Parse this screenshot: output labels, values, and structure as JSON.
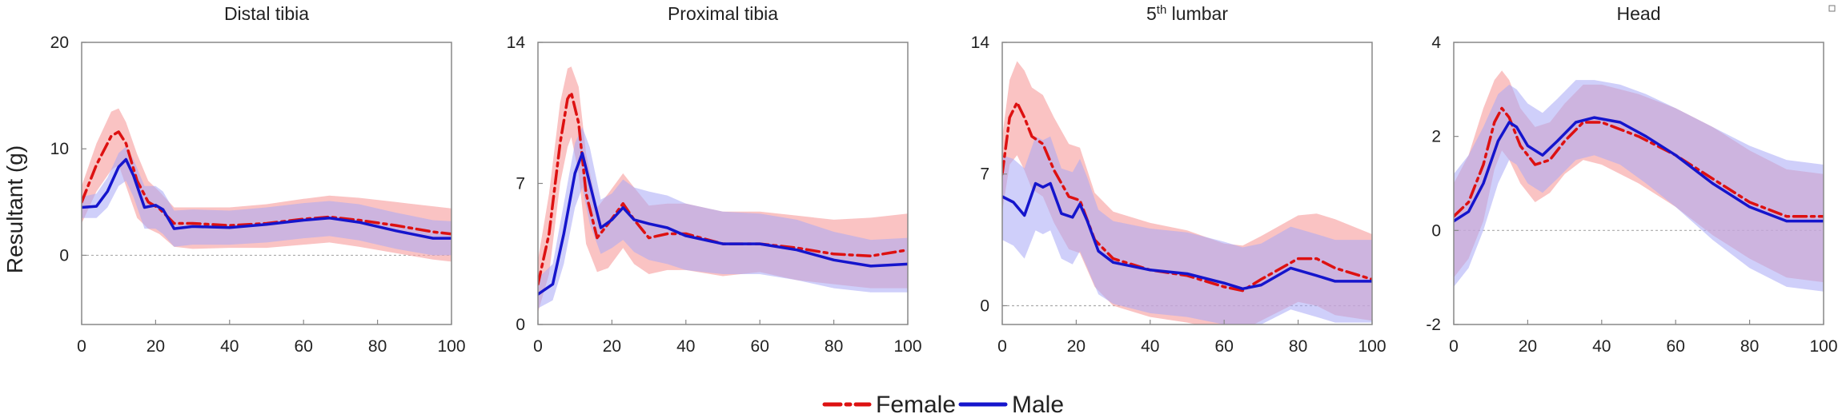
{
  "chart_data": {
    "type": "line",
    "ylabel": "Resultant (g)",
    "legend": {
      "placement": "bottom-center",
      "entries": [
        {
          "name": "Female",
          "color": "#dd1111",
          "dash": "dash-dot"
        },
        {
          "name": "Male",
          "color": "#1515cc",
          "dash": "solid"
        }
      ]
    },
    "colors": {
      "female_line": "#dd1111",
      "male_line": "#1515cc",
      "female_band": "#f7a3a3",
      "male_band": "#a8a8f5",
      "overlap_band": "#9a63b8"
    },
    "x_ticks": [
      "0",
      "20",
      "40",
      "60",
      "80",
      "100"
    ],
    "xlim": [
      0,
      100
    ],
    "panels": [
      {
        "title": "Distal tibia",
        "title_sup": "",
        "title_rest": "",
        "ylim": [
          -6.5,
          20
        ],
        "y_ticks": [
          {
            "v": 0,
            "label": "0"
          },
          {
            "v": 10,
            "label": "10"
          },
          {
            "v": 20,
            "label": "20"
          }
        ],
        "zero_line": true,
        "series": [
          {
            "name": "Female",
            "x": [
              0,
              4,
              8,
              10,
              12,
              15,
              18,
              21,
              25,
              30,
              40,
              50,
              60,
              67,
              75,
              85,
              95,
              100
            ],
            "y": [
              5.0,
              8.5,
              11.2,
              11.6,
              10.5,
              7.0,
              5.0,
              4.4,
              3.0,
              3.0,
              2.8,
              3.0,
              3.4,
              3.6,
              3.3,
              2.8,
              2.2,
              2.0
            ],
            "lower": [
              3.0,
              6.0,
              8.0,
              8.5,
              6.5,
              3.5,
              2.5,
              2.0,
              0.8,
              0.6,
              0.7,
              0.7,
              1.0,
              1.2,
              0.8,
              0.2,
              -0.4,
              -0.6
            ],
            "upper": [
              6.5,
              10.5,
              13.5,
              13.8,
              12.5,
              9.5,
              7.0,
              6.0,
              4.5,
              4.5,
              4.5,
              4.8,
              5.3,
              5.6,
              5.4,
              5.0,
              4.6,
              4.4
            ]
          },
          {
            "name": "Male",
            "x": [
              0,
              4,
              7,
              10,
              12,
              14,
              17,
              20,
              22,
              25,
              30,
              40,
              50,
              60,
              67,
              75,
              85,
              95,
              100
            ],
            "y": [
              4.5,
              4.6,
              6.0,
              8.3,
              9.0,
              7.5,
              4.5,
              4.7,
              4.3,
              2.5,
              2.7,
              2.6,
              2.9,
              3.3,
              3.5,
              3.1,
              2.3,
              1.6,
              1.6
            ],
            "lower": [
              3.5,
              3.5,
              4.5,
              6.5,
              7.0,
              5.5,
              2.5,
              2.5,
              2.0,
              0.8,
              1.0,
              1.0,
              1.2,
              1.6,
              1.8,
              1.4,
              0.6,
              0.0,
              0.0
            ],
            "upper": [
              5.5,
              5.8,
              7.3,
              9.6,
              10.2,
              9.0,
              6.5,
              6.5,
              6.0,
              4.2,
              4.3,
              4.2,
              4.5,
              4.9,
              5.1,
              4.8,
              4.0,
              3.3,
              3.2
            ]
          }
        ]
      },
      {
        "title": "Proximal tibia",
        "title_sup": "",
        "title_rest": "",
        "ylim": [
          0,
          14
        ],
        "y_ticks": [
          {
            "v": 0,
            "label": "0"
          },
          {
            "v": 7,
            "label": "7"
          },
          {
            "v": 14,
            "label": "14"
          }
        ],
        "zero_line": false,
        "series": [
          {
            "name": "Female",
            "x": [
              0,
              3,
              6,
              8,
              9,
              11,
              13,
              16,
              19,
              23,
              26,
              30,
              35,
              40,
              50,
              60,
              70,
              80,
              90,
              100
            ],
            "y": [
              2.0,
              4.5,
              9.0,
              11.2,
              11.5,
              10.0,
              6.5,
              4.3,
              5.0,
              6.0,
              5.2,
              4.3,
              4.5,
              4.5,
              4.0,
              4.0,
              3.8,
              3.5,
              3.4,
              3.7
            ],
            "lower": [
              0.6,
              2.5,
              7.0,
              8.8,
              9.3,
              7.5,
              4.0,
              2.6,
              2.8,
              3.8,
              3.0,
              2.5,
              2.7,
              2.7,
              2.4,
              2.6,
              2.2,
              2.0,
              1.8,
              1.8
            ],
            "upper": [
              3.2,
              6.5,
              11.0,
              12.7,
              12.8,
              11.8,
              8.5,
              5.8,
              6.5,
              7.5,
              6.8,
              5.9,
              6.0,
              6.0,
              5.6,
              5.6,
              5.4,
              5.2,
              5.3,
              5.5
            ]
          },
          {
            "name": "Male",
            "x": [
              0,
              4,
              7,
              10,
              12,
              14,
              17,
              20,
              23,
              26,
              30,
              35,
              40,
              50,
              60,
              70,
              80,
              90,
              100
            ],
            "y": [
              1.5,
              2.0,
              4.5,
              7.5,
              8.5,
              7.0,
              4.8,
              5.2,
              5.8,
              5.2,
              5.0,
              4.8,
              4.4,
              4.0,
              4.0,
              3.7,
              3.2,
              2.9,
              3.0
            ],
            "lower": [
              0.8,
              1.2,
              3.0,
              5.8,
              6.8,
              5.0,
              3.5,
              3.8,
              4.2,
              3.6,
              3.2,
              3.0,
              2.7,
              2.5,
              2.5,
              2.2,
              1.8,
              1.6,
              1.6
            ],
            "upper": [
              2.3,
              3.0,
              6.0,
              9.0,
              9.8,
              8.8,
              6.2,
              6.5,
              7.2,
              6.8,
              6.6,
              6.4,
              6.0,
              5.6,
              5.5,
              5.2,
              4.6,
              4.2,
              4.3
            ]
          }
        ]
      },
      {
        "title": "5",
        "title_sup": "th",
        "title_rest": " lumbar",
        "ylim": [
          -1,
          14
        ],
        "y_ticks": [
          {
            "v": 0,
            "label": "0"
          },
          {
            "v": 7,
            "label": "7"
          },
          {
            "v": 14,
            "label": "14"
          }
        ],
        "zero_line": true,
        "series": [
          {
            "name": "Female",
            "x": [
              0,
              2,
              4,
              6,
              8,
              11,
              14,
              18,
              21,
              25,
              30,
              40,
              50,
              60,
              65,
              70,
              80,
              85,
              90,
              100
            ],
            "y": [
              7.0,
              10.0,
              10.8,
              10.0,
              9.0,
              8.6,
              7.2,
              5.8,
              5.6,
              3.5,
              2.5,
              1.9,
              1.6,
              1.0,
              0.8,
              1.4,
              2.5,
              2.5,
              2.0,
              1.4
            ],
            "lower": [
              5.0,
              7.5,
              8.0,
              7.2,
              6.2,
              5.8,
              4.4,
              3.0,
              2.8,
              1.0,
              0.0,
              -0.6,
              -0.9,
              -1.3,
              -1.3,
              -0.8,
              0.2,
              0.0,
              -0.5,
              -0.8
            ],
            "upper": [
              9.0,
              12.0,
              13.0,
              12.5,
              11.6,
              11.2,
              10.0,
              8.6,
              8.4,
              6.0,
              5.0,
              4.4,
              4.0,
              3.3,
              3.2,
              3.7,
              4.8,
              4.9,
              4.6,
              3.8
            ]
          },
          {
            "name": "Male",
            "x": [
              0,
              3,
              6,
              9,
              11,
              13,
              16,
              19,
              21,
              23,
              26,
              30,
              40,
              50,
              60,
              65,
              70,
              78,
              85,
              90,
              100
            ],
            "y": [
              5.8,
              5.5,
              4.8,
              6.5,
              6.3,
              6.5,
              4.9,
              4.7,
              5.4,
              4.5,
              2.9,
              2.3,
              1.9,
              1.7,
              1.2,
              0.9,
              1.1,
              2.0,
              1.6,
              1.3,
              1.3
            ],
            "lower": [
              3.5,
              3.2,
              2.5,
              4.0,
              3.8,
              4.0,
              2.5,
              2.2,
              2.9,
              2.0,
              0.6,
              0.1,
              -0.4,
              -0.6,
              -1.0,
              -1.2,
              -1.0,
              -0.2,
              -0.6,
              -0.9,
              -0.9
            ],
            "upper": [
              8.0,
              7.8,
              7.3,
              9.0,
              8.8,
              9.0,
              7.3,
              7.1,
              7.8,
              6.8,
              5.1,
              4.5,
              4.1,
              3.9,
              3.4,
              3.1,
              3.3,
              4.2,
              3.8,
              3.5,
              3.5
            ]
          }
        ]
      },
      {
        "title": "Head",
        "title_sup": "",
        "title_rest": "",
        "ylim": [
          -2,
          4
        ],
        "y_ticks": [
          {
            "v": -2,
            "label": "-2"
          },
          {
            "v": 0,
            "label": "0"
          },
          {
            "v": 2,
            "label": "2"
          },
          {
            "v": 4,
            "label": "4"
          }
        ],
        "zero_line": true,
        "series": [
          {
            "name": "Female",
            "x": [
              0,
              4,
              8,
              11,
              13,
              15,
              18,
              22,
              26,
              30,
              35,
              40,
              50,
              60,
              70,
              80,
              90,
              100
            ],
            "y": [
              0.3,
              0.6,
              1.4,
              2.3,
              2.6,
              2.4,
              1.8,
              1.4,
              1.5,
              1.9,
              2.3,
              2.3,
              2.0,
              1.6,
              1.1,
              0.6,
              0.3,
              0.3
            ],
            "lower": [
              -1.0,
              -0.6,
              0.2,
              1.3,
              1.7,
              1.5,
              1.0,
              0.6,
              0.8,
              1.2,
              1.5,
              1.4,
              1.0,
              0.5,
              -0.1,
              -0.6,
              -1.0,
              -1.1
            ],
            "upper": [
              1.0,
              1.6,
              2.6,
              3.2,
              3.4,
              3.2,
              2.6,
              2.2,
              2.3,
              2.7,
              3.1,
              3.1,
              2.9,
              2.6,
              2.2,
              1.7,
              1.3,
              1.2
            ]
          },
          {
            "name": "Male",
            "x": [
              0,
              4,
              8,
              12,
              15,
              17,
              20,
              24,
              28,
              33,
              38,
              45,
              52,
              60,
              70,
              80,
              90,
              100
            ],
            "y": [
              0.2,
              0.4,
              1.0,
              1.9,
              2.3,
              2.2,
              1.8,
              1.6,
              1.9,
              2.3,
              2.4,
              2.3,
              2.0,
              1.6,
              1.0,
              0.5,
              0.2,
              0.2
            ],
            "lower": [
              -1.2,
              -0.8,
              0.0,
              1.0,
              1.5,
              1.4,
              1.0,
              0.8,
              1.1,
              1.5,
              1.6,
              1.4,
              1.0,
              0.5,
              -0.2,
              -0.8,
              -1.2,
              -1.3
            ],
            "upper": [
              1.2,
              1.6,
              2.2,
              2.9,
              3.1,
              3.0,
              2.7,
              2.5,
              2.8,
              3.2,
              3.2,
              3.1,
              2.9,
              2.6,
              2.2,
              1.8,
              1.5,
              1.4
            ]
          }
        ]
      }
    ]
  }
}
